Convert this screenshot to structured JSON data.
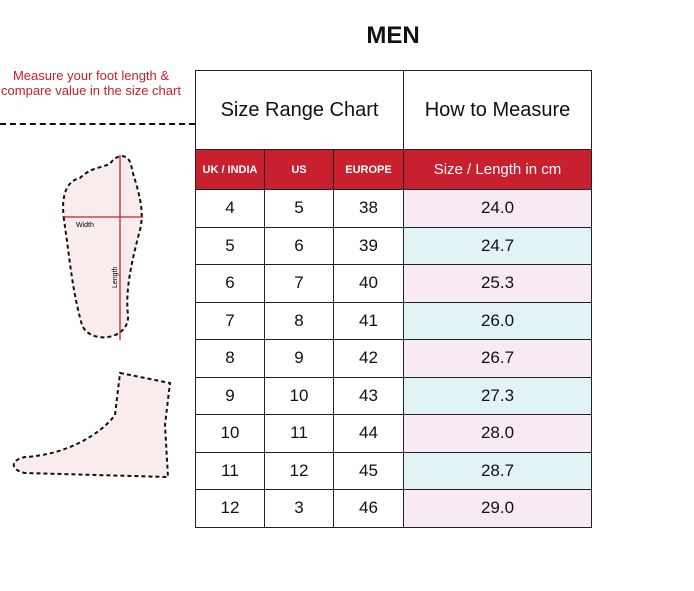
{
  "title": "MEN",
  "note": "Measure your foot length & compare value in the size chart",
  "foot_labels": {
    "width": "Width",
    "length": "Length"
  },
  "table": {
    "top_headers": [
      "Size Range Chart",
      "How to Measure"
    ],
    "columns": [
      "UK / INDIA",
      "US",
      "EUROPE",
      "Size / Length in cm"
    ],
    "rows": [
      [
        "4",
        "5",
        "38",
        "24.0"
      ],
      [
        "5",
        "6",
        "39",
        "24.7"
      ],
      [
        "6",
        "7",
        "40",
        "25.3"
      ],
      [
        "7",
        "8",
        "41",
        "26.0"
      ],
      [
        "8",
        "9",
        "42",
        "26.7"
      ],
      [
        "9",
        "10",
        "43",
        "27.3"
      ],
      [
        "10",
        "11",
        "44",
        "28.0"
      ],
      [
        "11",
        "12",
        "45",
        "28.7"
      ],
      [
        "12",
        "3",
        "46",
        "29.0"
      ]
    ]
  },
  "colors": {
    "accent": "#c8202f",
    "row_pink": "#f8eaf3",
    "row_cyan": "#e2f3f5"
  }
}
